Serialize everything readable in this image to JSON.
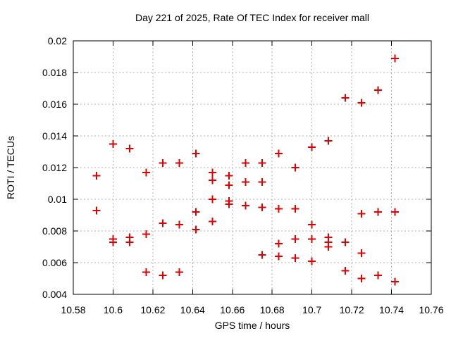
{
  "chart_data": {
    "type": "scatter",
    "title": "Day 221 of 2025, Rate Of TEC Index for receiver mall",
    "xlabel": "GPS time / hours",
    "ylabel": "ROTI / TECUs",
    "xlim": [
      10.58,
      10.76
    ],
    "ylim": [
      0.004,
      0.02
    ],
    "xticks": [
      10.58,
      10.6,
      10.62,
      10.64,
      10.66,
      10.68,
      10.7,
      10.72,
      10.74,
      10.76
    ],
    "xtick_labels": [
      "10.58",
      "10.6",
      "10.62",
      "10.64",
      "10.66",
      "10.68",
      "10.7",
      "10.72",
      "10.74",
      "10.76"
    ],
    "yticks": [
      0.004,
      0.006,
      0.008,
      0.01,
      0.012,
      0.014,
      0.016,
      0.018,
      0.02
    ],
    "ytick_labels": [
      "0.004",
      "0.006",
      "0.008",
      "0.01",
      "0.012",
      "0.014",
      "0.016",
      "0.018",
      "0.02"
    ],
    "grid": true,
    "grid_style": "dotted",
    "grid_color": "#b0b0b0",
    "border_color": "#000000",
    "legend": "none",
    "marker": {
      "shape": "plus",
      "color": "#e00000",
      "size": 11,
      "stroke_width": 2
    },
    "series": [
      {
        "name": "ROTI",
        "points": [
          [
            10.5917,
            0.0115
          ],
          [
            10.5917,
            0.0093
          ],
          [
            10.6,
            0.0135
          ],
          [
            10.6,
            0.0075
          ],
          [
            10.6,
            0.0073
          ],
          [
            10.6083,
            0.0132
          ],
          [
            10.6083,
            0.0076
          ],
          [
            10.6083,
            0.0073
          ],
          [
            10.6167,
            0.0117
          ],
          [
            10.6167,
            0.0078
          ],
          [
            10.6167,
            0.0054
          ],
          [
            10.625,
            0.0123
          ],
          [
            10.625,
            0.0085
          ],
          [
            10.625,
            0.0052
          ],
          [
            10.6333,
            0.0123
          ],
          [
            10.6333,
            0.0084
          ],
          [
            10.6333,
            0.0054
          ],
          [
            10.6417,
            0.0129
          ],
          [
            10.6417,
            0.0092
          ],
          [
            10.6417,
            0.0081
          ],
          [
            10.65,
            0.0117
          ],
          [
            10.65,
            0.0112
          ],
          [
            10.65,
            0.01
          ],
          [
            10.65,
            0.0086
          ],
          [
            10.6583,
            0.0115
          ],
          [
            10.6583,
            0.0109
          ],
          [
            10.6583,
            0.0099
          ],
          [
            10.6583,
            0.0097
          ],
          [
            10.6667,
            0.0123
          ],
          [
            10.6667,
            0.0111
          ],
          [
            10.6667,
            0.0096
          ],
          [
            10.675,
            0.0123
          ],
          [
            10.675,
            0.0111
          ],
          [
            10.675,
            0.0095
          ],
          [
            10.675,
            0.0065
          ],
          [
            10.6833,
            0.0129
          ],
          [
            10.6833,
            0.0094
          ],
          [
            10.6833,
            0.0072
          ],
          [
            10.6833,
            0.0064
          ],
          [
            10.6917,
            0.012
          ],
          [
            10.6917,
            0.0094
          ],
          [
            10.6917,
            0.0075
          ],
          [
            10.6917,
            0.0063
          ],
          [
            10.7,
            0.0133
          ],
          [
            10.7,
            0.0084
          ],
          [
            10.7,
            0.0075
          ],
          [
            10.7,
            0.0061
          ],
          [
            10.7083,
            0.0137
          ],
          [
            10.7083,
            0.0076
          ],
          [
            10.7083,
            0.0073
          ],
          [
            10.7083,
            0.007
          ],
          [
            10.7167,
            0.0164
          ],
          [
            10.7167,
            0.0073
          ],
          [
            10.7167,
            0.0055
          ],
          [
            10.725,
            0.0161
          ],
          [
            10.725,
            0.0091
          ],
          [
            10.725,
            0.0066
          ],
          [
            10.725,
            0.005
          ],
          [
            10.7333,
            0.0169
          ],
          [
            10.7333,
            0.0092
          ],
          [
            10.7333,
            0.0052
          ],
          [
            10.7417,
            0.0189
          ],
          [
            10.7417,
            0.0092
          ],
          [
            10.7417,
            0.0048
          ]
        ]
      }
    ]
  }
}
